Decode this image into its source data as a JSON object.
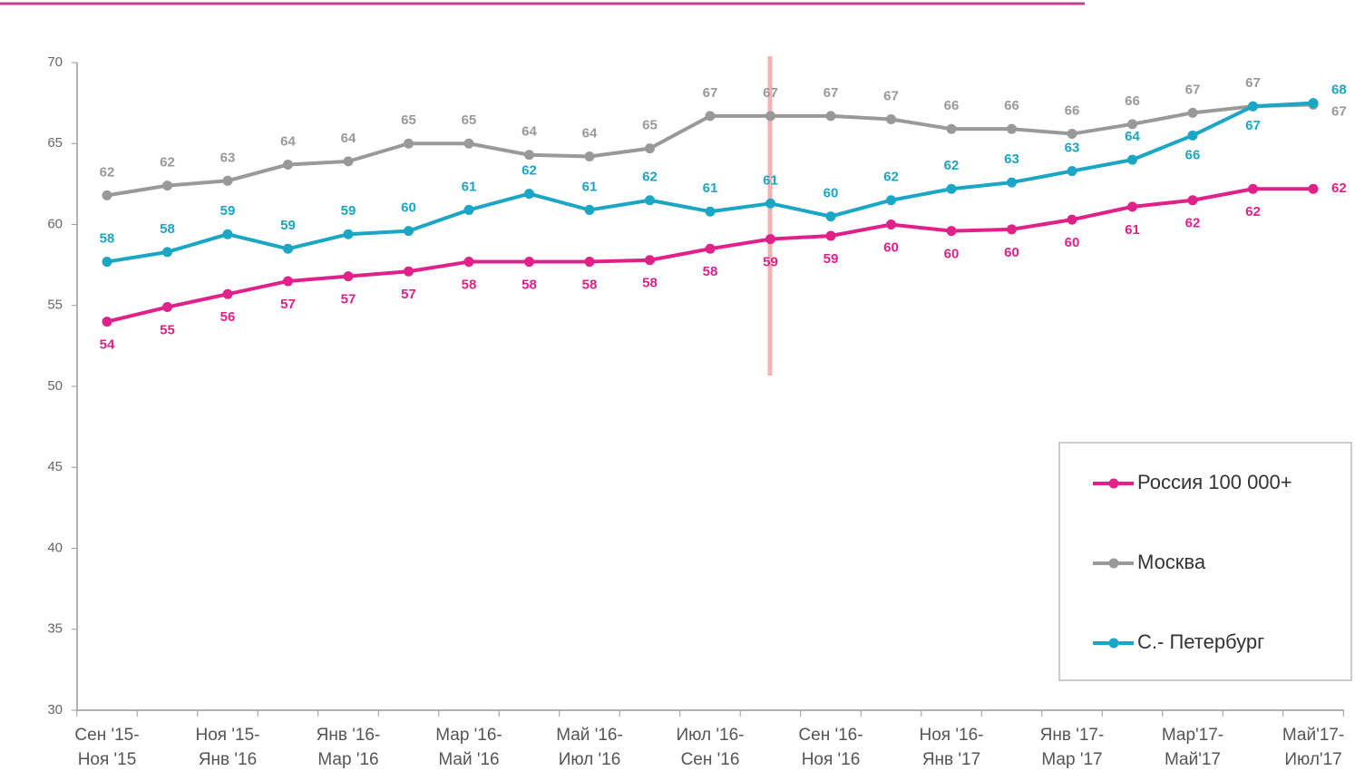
{
  "chart_data": {
    "type": "line",
    "categories": [
      [
        "Сен '15-",
        "Ноя '15"
      ],
      null,
      [
        "Ноя '15-",
        "Янв '16"
      ],
      null,
      [
        "Янв '16-",
        "Мар '16"
      ],
      null,
      [
        "Мар '16-",
        "Май '16"
      ],
      null,
      [
        "Май '16-",
        "Июл '16"
      ],
      null,
      [
        "Июл '16-",
        "Сен '16"
      ],
      null,
      [
        "Сен '16-",
        "Ноя '16"
      ],
      null,
      [
        "Ноя '16-",
        "Янв '17"
      ],
      null,
      [
        "Янв '17-",
        "Мар '17"
      ],
      null,
      [
        "Мар'17-",
        "Май'17"
      ],
      null,
      [
        "Май'17-",
        "Июл'17"
      ]
    ],
    "ylim": [
      30,
      70
    ],
    "yticks": [
      30,
      35,
      40,
      45,
      50,
      55,
      60,
      65,
      70
    ],
    "grid": false,
    "legend": "lower right",
    "series": [
      {
        "name": "Россия 100 000+",
        "color": "#e0218a",
        "values": [
          54.0,
          54.9,
          55.7,
          56.5,
          56.8,
          57.1,
          57.7,
          57.7,
          57.7,
          57.8,
          58.5,
          59.1,
          59.3,
          60.0,
          59.6,
          59.7,
          60.3,
          61.1,
          61.5,
          62.2,
          62.2
        ],
        "value_labels": [
          "54",
          "55",
          "56",
          "57",
          "57",
          "57",
          "58",
          "58",
          "58",
          "58",
          "58",
          "59",
          "59",
          "60",
          "60",
          "60",
          "60",
          "61",
          "62",
          "62",
          "62"
        ]
      },
      {
        "name": "Москва",
        "color": "#999999",
        "values": [
          61.8,
          62.4,
          62.7,
          63.7,
          63.9,
          65.0,
          65.0,
          64.3,
          64.2,
          64.7,
          66.7,
          66.7,
          66.7,
          66.5,
          65.9,
          65.9,
          65.6,
          66.2,
          66.9,
          67.3,
          67.4
        ],
        "value_labels": [
          "62",
          "62",
          "63",
          "64",
          "64",
          "65",
          "65",
          "64",
          "64",
          "65",
          "67",
          "67",
          "67",
          "67",
          "66",
          "66",
          "66",
          "66",
          "67",
          "67",
          "67"
        ]
      },
      {
        "name": "С.- Петербург",
        "color": "#1aa6c4",
        "values": [
          57.7,
          58.3,
          59.4,
          58.5,
          59.4,
          59.6,
          60.9,
          61.9,
          60.9,
          61.5,
          60.8,
          61.3,
          60.5,
          61.5,
          62.2,
          62.6,
          63.3,
          64.0,
          65.5,
          67.3,
          67.5
        ],
        "value_labels": [
          "58",
          "58",
          "59",
          "59",
          "59",
          "60",
          "61",
          "62",
          "61",
          "62",
          "61",
          "61",
          "60",
          "62",
          "62",
          "63",
          "63",
          "64",
          "66",
          "67",
          "68"
        ]
      }
    ]
  }
}
